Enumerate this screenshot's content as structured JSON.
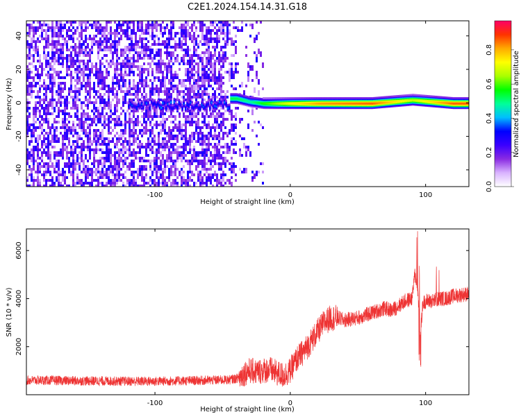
{
  "page": {
    "title": "C2E1.2024.154.14.31.G18"
  },
  "chart_data": [
    {
      "type": "heatmap",
      "xlabel": "Height of straight line (km)",
      "ylabel": "Frequency (Hz)",
      "xlim": [
        -195,
        132
      ],
      "ylim": [
        -50,
        49
      ],
      "x_ticks": [
        -100,
        0,
        100
      ],
      "x_tick_labels": [
        "-100",
        "0",
        "100"
      ],
      "y_ticks": [
        -40,
        -20,
        0,
        20,
        40
      ],
      "y_tick_labels": [
        "-40",
        "-20",
        "0",
        "20",
        "40"
      ],
      "colorbar": {
        "label": "Normalized spectral amplitude",
        "range": [
          0,
          0.97
        ],
        "ticks": [
          0,
          0.2,
          0.4,
          0.6,
          0.8
        ],
        "tick_labels": [
          "0.0",
          "0.2",
          "0.4",
          "0.6",
          "0.8"
        ],
        "colors": [
          "#ffffff",
          "#d9b3ff",
          "#8a2be2",
          "#3a00ff",
          "#0000ff",
          "#00bfff",
          "#00ff99",
          "#00ff00",
          "#aaff00",
          "#ffff00",
          "#ffaa00",
          "#ff3300",
          "#ff0066"
        ]
      },
      "description_points": [
        {
          "x": -40,
          "freq": 3,
          "amp": 0.55
        },
        {
          "x": -30,
          "freq": 1,
          "amp": 0.5
        },
        {
          "x": -20,
          "freq": 0,
          "amp": 0.6
        },
        {
          "x": 0,
          "freq": 0,
          "amp": 0.75
        },
        {
          "x": 20,
          "freq": 0,
          "amp": 0.85
        },
        {
          "x": 60,
          "freq": 0,
          "amp": 0.9
        },
        {
          "x": 90,
          "freq": 2,
          "amp": 0.7
        },
        {
          "x": 120,
          "freq": 0,
          "amp": 0.9
        }
      ]
    },
    {
      "type": "line",
      "xlabel": "Height of straight line (km)",
      "ylabel": "SNR (10 * v/v)",
      "xlim": [
        -195,
        132
      ],
      "ylim": [
        0,
        6900
      ],
      "x_ticks": [
        -100,
        0,
        100
      ],
      "x_tick_labels": [
        "-100",
        "0",
        "100"
      ],
      "y_ticks": [
        2000,
        4000,
        6000
      ],
      "y_tick_labels": [
        "2000",
        "4000",
        "6000"
      ],
      "color": "#ee3333",
      "series": [
        {
          "x": [
            -195,
            -180,
            -160,
            -140,
            -120,
            -100,
            -80,
            -60,
            -45,
            -38,
            -34,
            -30,
            -25,
            -20,
            -15,
            -10,
            -5,
            0,
            5,
            10,
            15,
            20,
            25,
            30,
            35,
            40,
            45,
            50,
            55,
            60,
            65,
            70,
            75,
            80,
            85,
            90,
            92,
            94,
            96,
            98,
            100,
            105,
            110,
            115,
            120,
            125,
            132
          ],
          "values": [
            600,
            600,
            580,
            570,
            560,
            560,
            580,
            600,
            620,
            700,
            900,
            1000,
            950,
            1000,
            1050,
            900,
            800,
            1000,
            1500,
            1800,
            2200,
            2600,
            3000,
            3200,
            3200,
            3100,
            3150,
            3200,
            3300,
            3400,
            3500,
            3600,
            3500,
            3700,
            3900,
            4000,
            5000,
            4600,
            2500,
            3800,
            3900,
            3900,
            4000,
            4000,
            4100,
            4150,
            4200
          ]
        }
      ]
    }
  ]
}
